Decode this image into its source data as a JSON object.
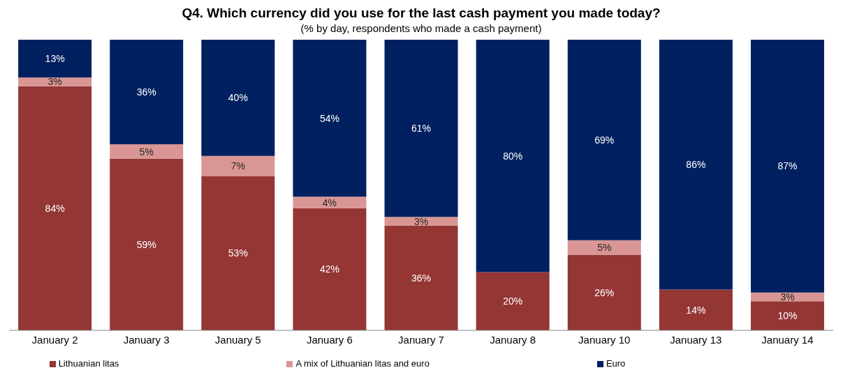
{
  "chart_data": {
    "type": "bar",
    "stacked": true,
    "title": "Q4. Which currency did you use for the last cash payment you made today?",
    "subtitle": "(% by day, respondents who made a cash payment)",
    "categories": [
      "January 2",
      "January 3",
      "January 5",
      "January 6",
      "January 7",
      "January 8",
      "January 10",
      "January 13",
      "January 14"
    ],
    "legend": "bottom",
    "series": [
      {
        "name": "Lithuanian litas",
        "color": "#943634",
        "values": [
          84,
          59,
          53,
          42,
          36,
          20,
          26,
          14,
          10
        ],
        "value_labels": [
          "84%",
          "59%",
          "53%",
          "42%",
          "36%",
          "20%",
          "26%",
          "14%",
          "10%"
        ]
      },
      {
        "name": "A mix of Lithuanian litas and euro",
        "color": "#d99694",
        "values": [
          3,
          5,
          7,
          4,
          3,
          null,
          5,
          null,
          3
        ],
        "value_labels": [
          "3%",
          "5%",
          "7%",
          "4%",
          "3%",
          null,
          "5%",
          null,
          "3%"
        ]
      },
      {
        "name": "Euro",
        "color": "#002060",
        "values": [
          13,
          36,
          40,
          54,
          61,
          80,
          69,
          86,
          87
        ],
        "value_labels": [
          "13%",
          "36%",
          "40%",
          "54%",
          "61%",
          "80%",
          "69%",
          "86%",
          "87%"
        ]
      }
    ]
  }
}
